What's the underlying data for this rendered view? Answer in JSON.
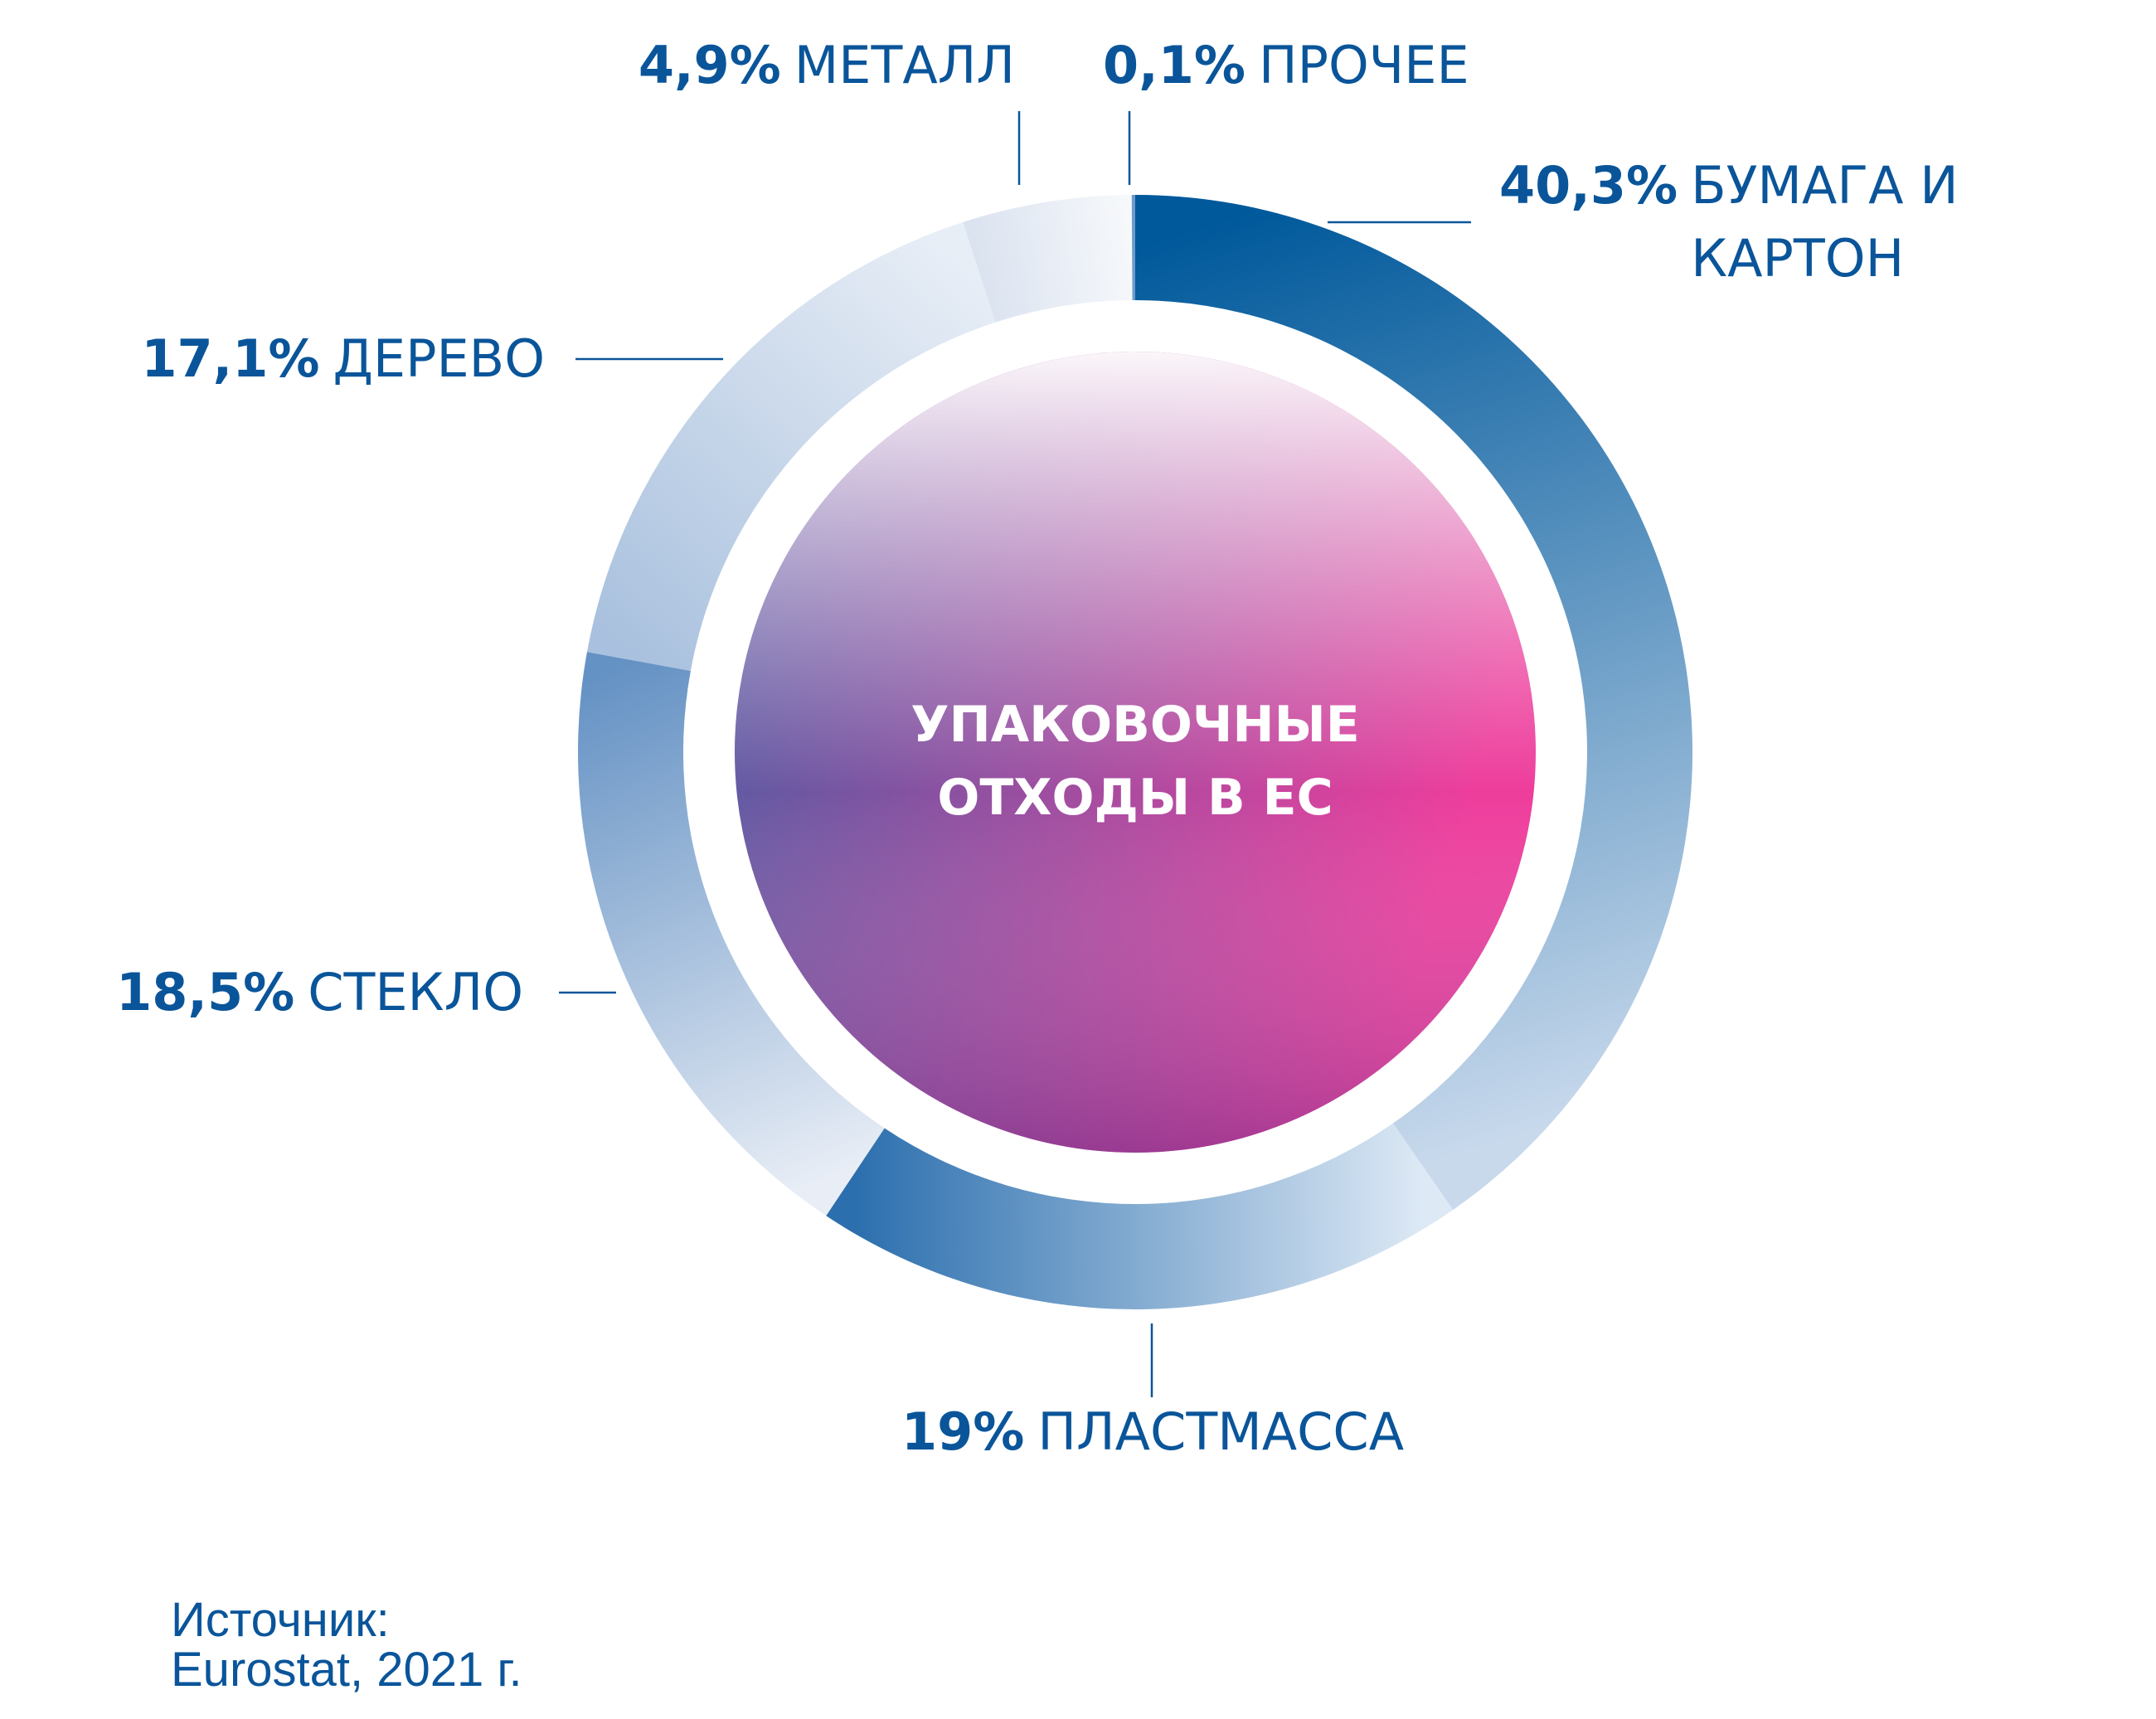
{
  "chart_data": {
    "type": "donut",
    "title": "УПАКОВОЧНЫЕ ОТХОДЫ В ЕС",
    "categories": [
      "БУМАГА И КАРТОН",
      "ПЛАСТМАССА",
      "СТЕКЛО",
      "ДЕРЕВО",
      "МЕТАЛЛ",
      "ПРОЧЕЕ"
    ],
    "values": [
      40.3,
      19,
      18.5,
      17.1,
      4.9,
      0.1
    ],
    "value_labels": [
      "40,3%",
      "19%",
      "18,5%",
      "17,1%",
      "4,9%",
      "0,1%"
    ],
    "colors": [
      [
        "#00599b",
        "#c8d9ec"
      ],
      [
        "#dde9f5",
        "#2c6fae"
      ],
      [
        "#e9eef6",
        "#6592c4"
      ],
      [
        "#a9c1de",
        "#e8eef6"
      ],
      [
        "#dbe3f0",
        "#f6f8fb"
      ],
      [
        "#6d9bcb",
        "#6d9bcb"
      ]
    ],
    "source_label": "Источник:",
    "source": "Eurostat, 2021 г."
  }
}
